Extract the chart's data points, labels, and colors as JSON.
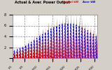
{
  "title": "Actual & Aver. Power Output",
  "bg_color": "#d4d0c8",
  "plot_bg_color": "#ffffff",
  "grid_color": "#8888aa",
  "actual_color": "#ff0000",
  "average_color": "#0000cc",
  "ylim": [
    0,
    8
  ],
  "ytick_labels": [
    "",
    "2",
    "4",
    "6",
    "8"
  ],
  "ytick_values": [
    0,
    2,
    4,
    6,
    8
  ],
  "num_days": 30,
  "samples_per_day": 48,
  "legend_actual": "Actual kW",
  "legend_average": "Average kW"
}
